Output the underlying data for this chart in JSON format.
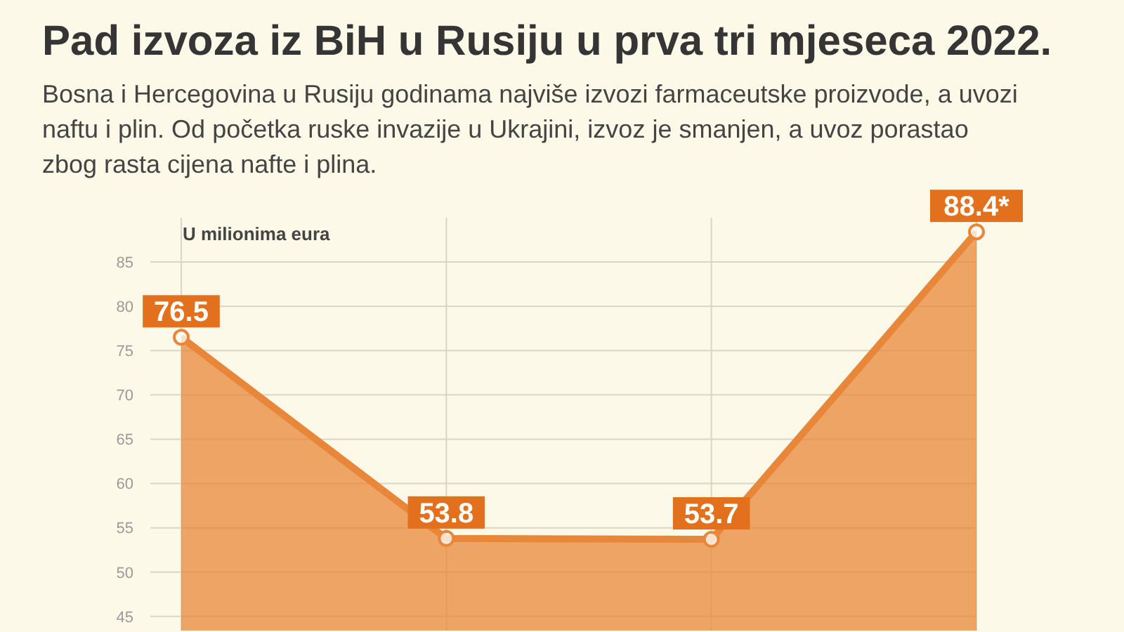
{
  "chart_data": {
    "type": "area",
    "title": "Pad izvoza iz BiH u Rusiju u prva tri mjeseca 2022.",
    "subtitle": "Bosna i Hercegovina u Rusiju godinama najviše izvozi farmaceutske proizvode, a uvozi naftu i plin. Od početka ruske invazije u Ukrajini, izvoz je smanjen, a uvoz porastao zbog rasta cijena nafte i plina.",
    "ylabel": "U milionima eura",
    "categories": [
      null,
      null,
      null,
      null
    ],
    "values": [
      76.5,
      53.8,
      53.7,
      88.4
    ],
    "color": "#e8873a",
    "value_labels": [
      "76.5",
      "53.8",
      "53.7",
      "88.4*"
    ],
    "ylim": [
      43.4,
      90
    ],
    "yticks": [
      45,
      50,
      55,
      60,
      65,
      70,
      75,
      80,
      85
    ],
    "grid": true,
    "marker": "circle"
  }
}
